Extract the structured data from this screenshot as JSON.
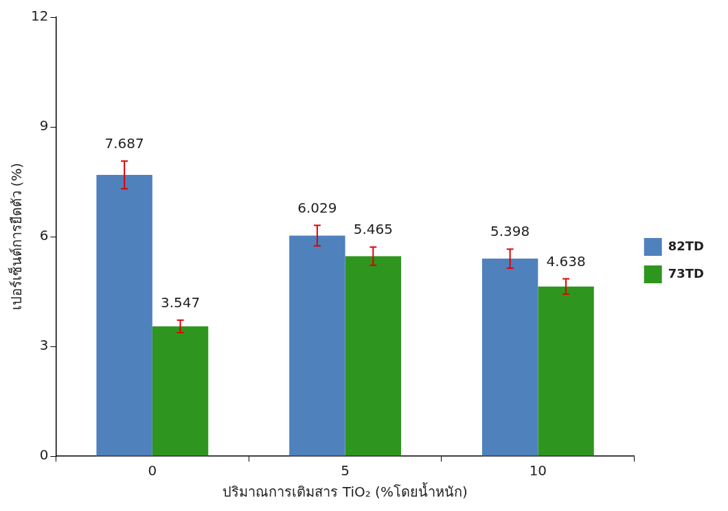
{
  "chart_data": {
    "type": "bar",
    "x_label": "ปริมาณการเติมสาร TiO₂ (%โดยน้ำหนัก)",
    "y_label": "เปอร์เซ็นต์การยืดตัว (%)",
    "categories": [
      "0",
      "5",
      "10"
    ],
    "series": [
      {
        "name": "82TD",
        "color": "#4f81bd",
        "values": [
          7.687,
          6.029,
          5.398
        ],
        "errors": [
          0.38,
          0.28,
          0.26
        ]
      },
      {
        "name": "73TD",
        "color": "#2e961e",
        "values": [
          3.547,
          5.465,
          4.638
        ],
        "errors": [
          0.17,
          0.25,
          0.21
        ]
      }
    ],
    "ylim": [
      0,
      12
    ],
    "yticks": [
      0,
      3,
      6,
      9,
      12
    ],
    "grid": false,
    "legend": "right",
    "data_labels": true
  }
}
